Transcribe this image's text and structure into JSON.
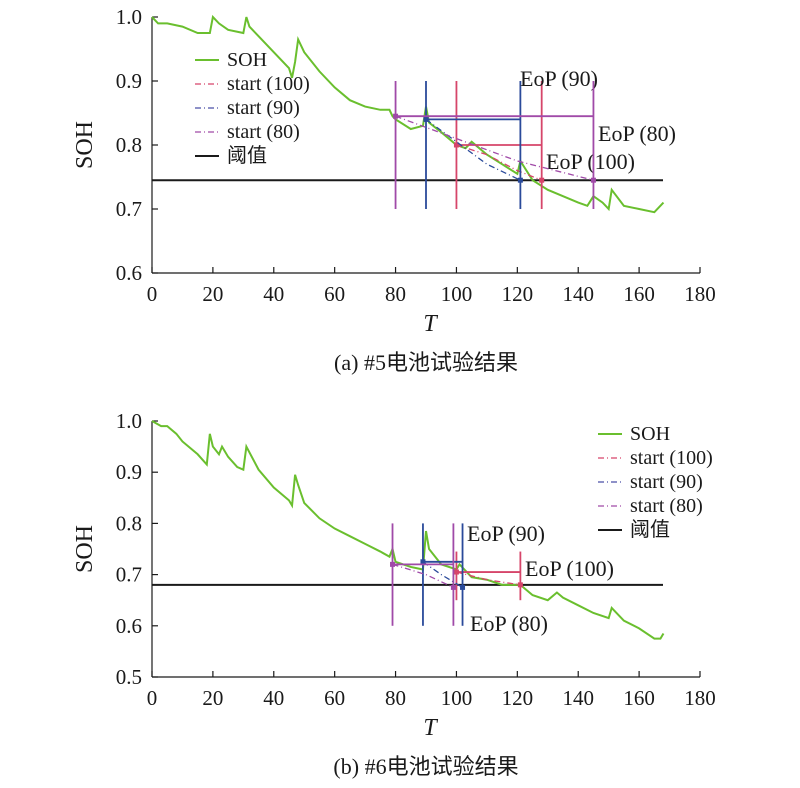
{
  "chart_data": [
    {
      "type": "line",
      "caption": "(a) #5电池试验结果",
      "xlabel": "T",
      "ylabel": "SOH",
      "xlim": [
        0,
        180
      ],
      "ylim": [
        0.6,
        1.0
      ],
      "x_ticks": [
        "0",
        "20",
        "40",
        "60",
        "80",
        "100",
        "120",
        "140",
        "160",
        "180"
      ],
      "y_ticks": [
        "0.6",
        "0.7",
        "0.8",
        "0.9",
        "1.0"
      ],
      "legend": {
        "position": "upper-left",
        "entries": [
          {
            "label": "SOH",
            "color": "#6abf2e",
            "style": "solid"
          },
          {
            "label": "start (100)",
            "color": "#d6456a",
            "style": "dashdot"
          },
          {
            "label": "start (90)",
            "color": "#4a4fa8",
            "style": "dashdot"
          },
          {
            "label": "start (80)",
            "color": "#a04aa8",
            "style": "dashdot"
          },
          {
            "label": "阈值",
            "color": "#1a1a1a",
            "style": "solid"
          }
        ]
      },
      "soh": {
        "x": [
          0,
          2,
          5,
          10,
          15,
          18,
          19,
          20,
          22,
          25,
          30,
          31,
          32,
          35,
          40,
          45,
          46,
          47,
          48,
          50,
          55,
          60,
          65,
          70,
          75,
          78,
          79,
          80,
          85,
          89,
          90,
          91,
          95,
          100,
          103,
          105,
          110,
          115,
          120,
          121,
          125,
          130,
          135,
          140,
          143,
          145,
          148,
          150,
          151,
          155,
          160,
          165,
          168
        ],
        "y": [
          1.0,
          0.99,
          0.99,
          0.985,
          0.975,
          0.975,
          0.975,
          1.0,
          0.99,
          0.98,
          0.975,
          1.0,
          0.985,
          0.97,
          0.945,
          0.92,
          0.905,
          0.93,
          0.965,
          0.945,
          0.915,
          0.89,
          0.87,
          0.86,
          0.855,
          0.855,
          0.845,
          0.84,
          0.825,
          0.83,
          0.86,
          0.835,
          0.82,
          0.8,
          0.795,
          0.805,
          0.785,
          0.77,
          0.755,
          0.775,
          0.745,
          0.73,
          0.72,
          0.71,
          0.705,
          0.72,
          0.71,
          0.7,
          0.73,
          0.705,
          0.7,
          0.695,
          0.71
        ]
      },
      "threshold": {
        "label": "阈值",
        "value": 0.745
      },
      "predictions": [
        {
          "name": "start (100)",
          "color": "#d6456a",
          "start": [
            100,
            0.8
          ],
          "eop": [
            128,
            0.745
          ],
          "pred_x": [
            100,
            110,
            120,
            128
          ],
          "pred_y": [
            0.8,
            0.785,
            0.76,
            0.745
          ],
          "vline_y": [
            0.7,
            0.9
          ],
          "label": "EoP (100)"
        },
        {
          "name": "start (90)",
          "color": "#2a4a9a",
          "start": [
            90,
            0.84
          ],
          "eop": [
            121,
            0.745
          ],
          "pred_x": [
            90,
            100,
            110,
            121
          ],
          "pred_y": [
            0.84,
            0.805,
            0.77,
            0.745
          ],
          "vline_y": [
            0.7,
            0.9
          ],
          "label": "EoP (90)"
        },
        {
          "name": "start (80)",
          "color": "#a04aa8",
          "start": [
            80,
            0.845
          ],
          "eop": [
            145,
            0.745
          ],
          "pred_x": [
            80,
            100,
            120,
            145
          ],
          "pred_y": [
            0.845,
            0.81,
            0.775,
            0.745
          ],
          "vline_y": [
            0.7,
            0.9
          ],
          "label": "EoP (80)"
        }
      ]
    },
    {
      "type": "line",
      "caption": "(b) #6电池试验结果",
      "xlabel": "T",
      "ylabel": "SOH",
      "xlim": [
        0,
        180
      ],
      "ylim": [
        0.5,
        1.0
      ],
      "x_ticks": [
        "0",
        "20",
        "40",
        "60",
        "80",
        "100",
        "120",
        "140",
        "160",
        "180"
      ],
      "y_ticks": [
        "0.5",
        "0.6",
        "0.7",
        "0.8",
        "0.9",
        "1.0"
      ],
      "legend": {
        "position": "upper-right",
        "entries": [
          {
            "label": "SOH",
            "color": "#6abf2e",
            "style": "solid"
          },
          {
            "label": "start (100)",
            "color": "#d6456a",
            "style": "dashdot"
          },
          {
            "label": "start (90)",
            "color": "#4a4fa8",
            "style": "dashdot"
          },
          {
            "label": "start (80)",
            "color": "#a04aa8",
            "style": "dashdot"
          },
          {
            "label": "阈值",
            "color": "#1a1a1a",
            "style": "solid"
          }
        ]
      },
      "soh": {
        "x": [
          0,
          3,
          5,
          8,
          10,
          15,
          18,
          19,
          20,
          22,
          23,
          25,
          28,
          30,
          31,
          35,
          40,
          45,
          46,
          47,
          48,
          50,
          55,
          60,
          65,
          70,
          75,
          78,
          79,
          80,
          85,
          89,
          90,
          91,
          95,
          100,
          101,
          105,
          110,
          115,
          120,
          121,
          125,
          130,
          133,
          135,
          140,
          145,
          150,
          151,
          155,
          160,
          165,
          167,
          168
        ],
        "y": [
          1.0,
          0.99,
          0.99,
          0.975,
          0.96,
          0.935,
          0.915,
          0.975,
          0.95,
          0.935,
          0.95,
          0.93,
          0.91,
          0.905,
          0.95,
          0.905,
          0.87,
          0.845,
          0.835,
          0.895,
          0.875,
          0.84,
          0.81,
          0.79,
          0.775,
          0.76,
          0.745,
          0.735,
          0.75,
          0.725,
          0.715,
          0.71,
          0.785,
          0.75,
          0.72,
          0.71,
          0.72,
          0.695,
          0.69,
          0.68,
          0.68,
          0.68,
          0.66,
          0.65,
          0.665,
          0.655,
          0.64,
          0.625,
          0.615,
          0.635,
          0.61,
          0.595,
          0.575,
          0.575,
          0.585
        ]
      },
      "threshold": {
        "label": "阈值",
        "value": 0.68
      },
      "predictions": [
        {
          "name": "start (100)",
          "color": "#d6456a",
          "start": [
            100,
            0.705
          ],
          "eop": [
            121,
            0.68
          ],
          "pred_x": [
            100,
            110,
            121
          ],
          "pred_y": [
            0.705,
            0.69,
            0.68
          ],
          "vline_y": [
            0.65,
            0.745
          ],
          "label": "EoP (100)"
        },
        {
          "name": "start (90)",
          "color": "#2a4a9a",
          "start": [
            89,
            0.725
          ],
          "eop": [
            102,
            0.675
          ],
          "pred_x": [
            89,
            95,
            102
          ],
          "pred_y": [
            0.725,
            0.7,
            0.675
          ],
          "vline_y": [
            0.6,
            0.8
          ],
          "label": "EoP (90)"
        },
        {
          "name": "start (80)",
          "color": "#a04aa8",
          "start": [
            79,
            0.72
          ],
          "eop": [
            99,
            0.675
          ],
          "pred_x": [
            79,
            90,
            99
          ],
          "pred_y": [
            0.72,
            0.7,
            0.675
          ],
          "vline_y": [
            0.6,
            0.8
          ],
          "label": "EoP (80)"
        }
      ]
    }
  ]
}
